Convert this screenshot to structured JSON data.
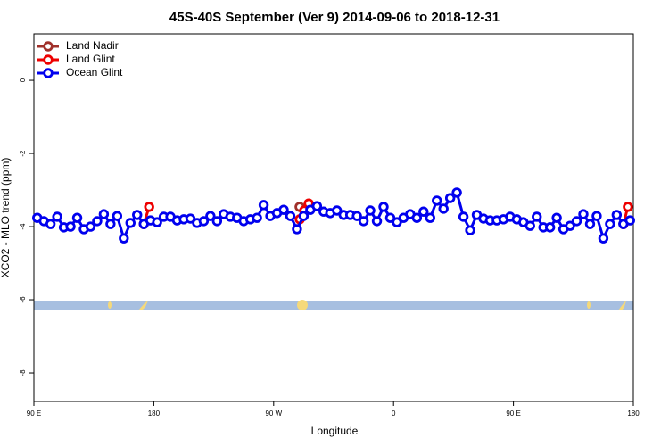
{
  "chart_data": {
    "type": "line",
    "title": "45S-40S September (Ver 9)   2014-09-06 to 2018-12-31",
    "xlabel": "Longitude",
    "ylabel": "XCO2 - MLO trend (ppm)",
    "xlim": [
      90,
      540
    ],
    "ylim": [
      -8.78,
      1.27
    ],
    "xticks": [
      {
        "value": 90,
        "label": "90 E"
      },
      {
        "value": 180,
        "label": "180"
      },
      {
        "value": 270,
        "label": "90 W"
      },
      {
        "value": 360,
        "label": "0"
      },
      {
        "value": 450,
        "label": "90 E"
      },
      {
        "value": 540,
        "label": "180"
      }
    ],
    "yticks": [
      0,
      -2,
      -4,
      -6,
      -8
    ],
    "legend": "top-left",
    "series": [
      {
        "name": "Land Nadir",
        "color": "#a0302a",
        "x": [
          289.5
        ],
        "values": [
          -3.46
        ]
      },
      {
        "name": "Land Glint",
        "color": "#ee0000",
        "x": [
          172.5,
          176.5,
          null,
          289.6,
          292.9,
          296.3,
          null,
          532.6,
          535.9
        ],
        "values": [
          -3.93,
          -3.46,
          null,
          -3.8,
          -3.56,
          -3.37,
          null,
          -3.93,
          -3.46
        ]
      },
      {
        "name": "Ocean Glint",
        "color": "#0000ee",
        "x": [
          92.5,
          97.5,
          102.5,
          107.5,
          112.5,
          117.5,
          122.5,
          127.5,
          132.5,
          137.5,
          142.5,
          147.5,
          152.5,
          157.5,
          162.5,
          167.5,
          172.5,
          177.5,
          182.5,
          187.5,
          192.5,
          197.5,
          202.5,
          207.5,
          212.5,
          217.5,
          222.5,
          227.5,
          232.5,
          237.5,
          242.5,
          247.5,
          252.5,
          257.5,
          262.5,
          267.5,
          272.5,
          277.5,
          282.5,
          287.5,
          292.5,
          297.5,
          302.5,
          307.5,
          312.5,
          317.5,
          322.5,
          327.5,
          332.5,
          337.5,
          342.5,
          347.5,
          352.5,
          357.5,
          362.5,
          367.5,
          372.5,
          377.5,
          382.5,
          387.5,
          392.5,
          397.5,
          402.5,
          407.5,
          412.5,
          417.5,
          422.5,
          427.5,
          432.5,
          437.5,
          442.5,
          447.5,
          452.5,
          457.5,
          462.5,
          467.5,
          472.5,
          477.5,
          482.5,
          487.5,
          492.5,
          497.5,
          502.5,
          507.5,
          512.5,
          517.5,
          522.5,
          527.5,
          532.5,
          537.5
        ],
        "values": [
          -3.76,
          -3.85,
          -3.93,
          -3.73,
          -4.02,
          -4.0,
          -3.76,
          -4.07,
          -4.0,
          -3.85,
          -3.66,
          -3.93,
          -3.71,
          -4.32,
          -3.9,
          -3.68,
          -3.93,
          -3.83,
          -3.88,
          -3.73,
          -3.73,
          -3.83,
          -3.8,
          -3.78,
          -3.9,
          -3.85,
          -3.71,
          -3.85,
          -3.66,
          -3.73,
          -3.76,
          -3.85,
          -3.8,
          -3.76,
          -3.41,
          -3.71,
          -3.63,
          -3.54,
          -3.71,
          -4.07,
          -3.71,
          -3.54,
          -3.44,
          -3.59,
          -3.63,
          -3.56,
          -3.68,
          -3.68,
          -3.71,
          -3.85,
          -3.56,
          -3.85,
          -3.46,
          -3.76,
          -3.88,
          -3.76,
          -3.66,
          -3.76,
          -3.59,
          -3.76,
          -3.29,
          -3.51,
          -3.22,
          -3.07,
          -3.73,
          -4.1,
          -3.68,
          -3.78,
          -3.83,
          -3.83,
          -3.8,
          -3.73,
          -3.8,
          -3.88,
          -3.98,
          -3.73,
          -4.02,
          -4.02,
          -3.76,
          -4.07,
          -3.98,
          -3.85,
          -3.66,
          -3.93,
          -3.71,
          -4.32,
          -3.93,
          -3.68,
          -3.93,
          -3.83
        ]
      }
    ]
  }
}
